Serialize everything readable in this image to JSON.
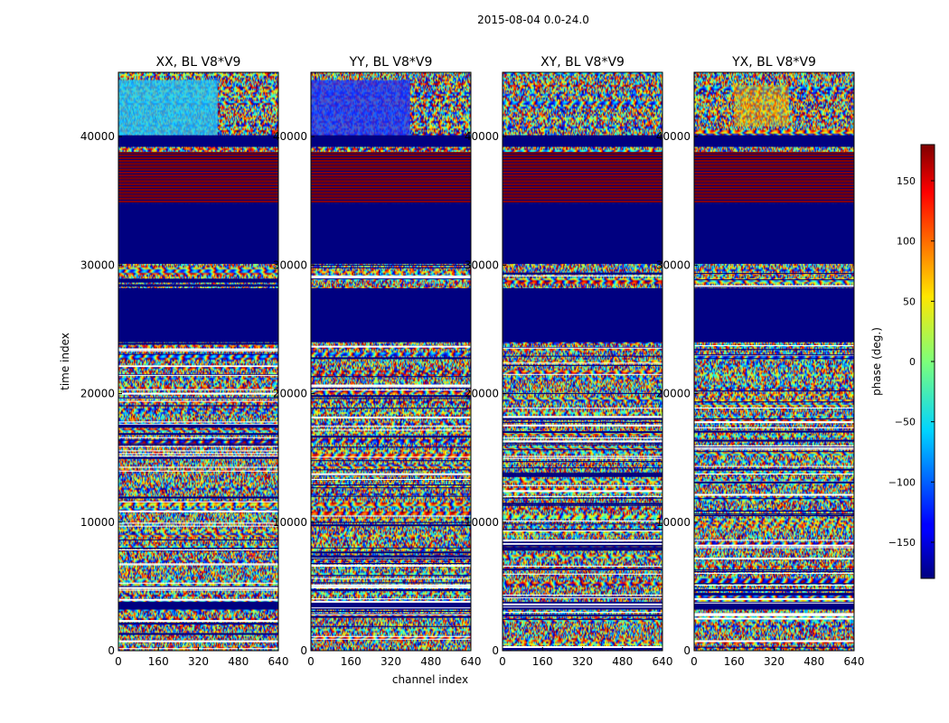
{
  "figure": {
    "suptitle": "2015-08-04 0.0-24.0"
  },
  "chart_data": {
    "type": "heatmap",
    "title": "2015-08-04 0.0-24.0",
    "xlabel": "channel index",
    "ylabel": "time index",
    "xlim": [
      0,
      640
    ],
    "ylim": [
      0,
      45000
    ],
    "xticks": [
      0,
      160,
      320,
      480,
      640
    ],
    "yticks": [
      0,
      10000,
      20000,
      30000,
      40000
    ],
    "panels": [
      {
        "title": "XX, BL V8*V9",
        "pol": "XX"
      },
      {
        "title": "YY, BL V8*V9",
        "pol": "YY"
      },
      {
        "title": "XY, BL V8*V9",
        "pol": "XY"
      },
      {
        "title": "YX, BL V8*V9",
        "pol": "YX"
      }
    ],
    "colorbar": {
      "label": "phase (deg.)",
      "range": [
        -180,
        180
      ],
      "ticks": [
        150,
        100,
        50,
        0,
        -50,
        -100,
        -150
      ],
      "tick_labels": [
        "150",
        "100",
        "50",
        "0",
        "−50",
        "−100",
        "−150"
      ],
      "colormap": "jet"
    },
    "bands": [
      {
        "y0": 38800,
        "y1": 34800,
        "kind": "red_stripes",
        "phase": 180
      },
      {
        "y0": 34800,
        "y1": 30100,
        "kind": "solid",
        "phase": -180
      },
      {
        "y0": 28200,
        "y1": 24000,
        "kind": "solid",
        "phase": -180
      },
      {
        "y0": 40100,
        "y1": 39200,
        "kind": "solid",
        "phase": -180
      },
      {
        "y0": 3800,
        "y1": 3200,
        "kind": "solid",
        "phase": -180
      }
    ]
  }
}
